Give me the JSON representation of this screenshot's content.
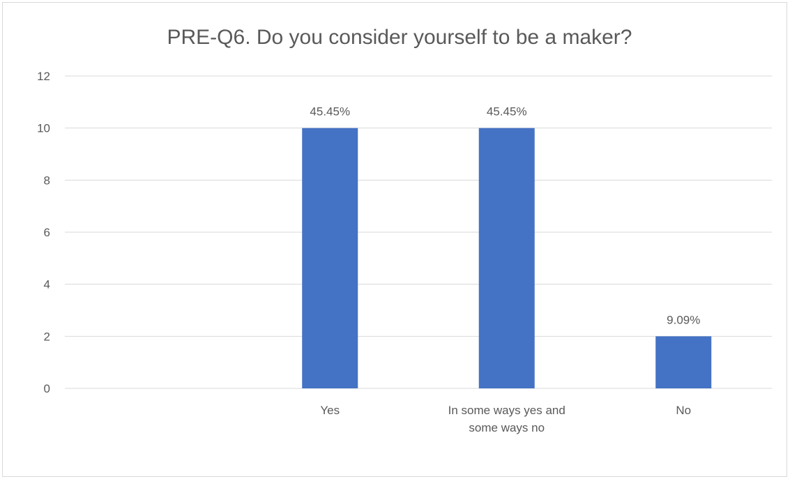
{
  "chart_data": {
    "type": "bar",
    "title": "PRE-Q6. Do you consider yourself to be a maker?",
    "categories": [
      "",
      "Yes",
      "In some ways yes and some ways no",
      "No"
    ],
    "category_label_lines": [
      [
        ""
      ],
      [
        "Yes"
      ],
      [
        "In some ways yes and",
        "some ways no"
      ],
      [
        "No"
      ]
    ],
    "values": [
      null,
      10,
      10,
      2
    ],
    "data_labels": [
      "",
      "45.45%",
      "45.45%",
      "9.09%"
    ],
    "y_ticks": [
      0,
      2,
      4,
      6,
      8,
      10,
      12
    ],
    "ylim": [
      0,
      12
    ],
    "xlabel": "",
    "ylabel": "",
    "grid": true,
    "bar_color": "#4472c4",
    "grid_color": "#d9d9d9",
    "text_color": "#595959"
  }
}
